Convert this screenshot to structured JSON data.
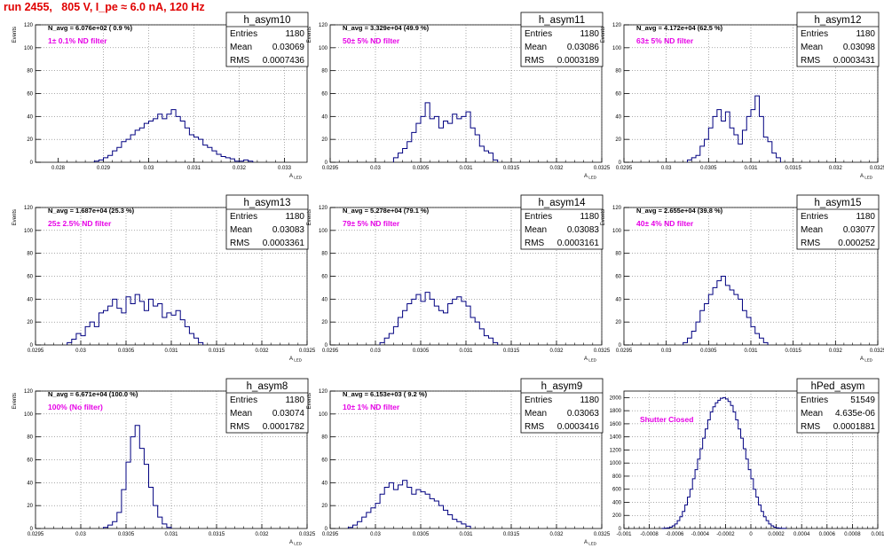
{
  "header": {
    "run_title": "run 2455,   805 V, I_pe ≈ 6.0 nA, 120 Hz"
  },
  "chart_data": [
    {
      "type": "histogram",
      "name": "h_asym10",
      "navg": "N_avg = 6.076e+02 ( 0.9 %)",
      "note": "1± 0.1% ND filter",
      "stats": {
        "Entries": "1180",
        "Mean": "0.03069",
        "RMS": "0.0007436"
      },
      "ylabel": "Events",
      "xlabel": "A_LED",
      "ylim": [
        0,
        120
      ],
      "yticks": [
        0,
        20,
        40,
        60,
        80,
        100,
        120
      ],
      "xlim": [
        0.0275,
        0.0335
      ],
      "xticks": [
        0.028,
        0.029,
        0.03,
        0.031,
        0.032,
        0.033
      ],
      "xtick_labels": [
        "0.028",
        "0.029",
        "0.03",
        "0.031",
        "0.032",
        "0.033"
      ],
      "bin_width": 0.0001,
      "bins_start": 0.0288,
      "counts": [
        1,
        2,
        4,
        6,
        10,
        13,
        18,
        20,
        24,
        28,
        30,
        34,
        36,
        38,
        42,
        38,
        42,
        46,
        40,
        36,
        30,
        24,
        22,
        20,
        15,
        13,
        10,
        7,
        5,
        4,
        3,
        1,
        1,
        2,
        1
      ]
    },
    {
      "type": "histogram",
      "name": "h_asym11",
      "navg": "N_avg = 3.329e+04 (49.9 %)",
      "note": "50± 5% ND filter",
      "stats": {
        "Entries": "1180",
        "Mean": "0.03086",
        "RMS": "0.0003189"
      },
      "ylabel": "Events",
      "xlabel": "A_LED",
      "ylim": [
        0,
        120
      ],
      "yticks": [
        0,
        20,
        40,
        60,
        80,
        100,
        120
      ],
      "xlim": [
        0.0295,
        0.0325
      ],
      "xticks": [
        0.0295,
        0.03,
        0.0305,
        0.031,
        0.0315,
        0.032,
        0.0325
      ],
      "xtick_labels": [
        "0.0295",
        "0.03",
        "0.0305",
        "0.031",
        "0.0315",
        "0.032",
        "0.0325"
      ],
      "bin_width": 5e-05,
      "bins_start": 0.0302,
      "counts": [
        4,
        8,
        12,
        18,
        26,
        34,
        40,
        52,
        38,
        40,
        30,
        36,
        34,
        42,
        38,
        40,
        44,
        30,
        24,
        14,
        10,
        8,
        2
      ]
    },
    {
      "type": "histogram",
      "name": "h_asym12",
      "navg": "N_avg = 4.172e+04 (62.5 %)",
      "note": "63± 5% ND filter",
      "stats": {
        "Entries": "1180",
        "Mean": "0.03098",
        "RMS": "0.0003431"
      },
      "ylabel": "Events",
      "xlabel": "A_LED",
      "ylim": [
        0,
        120
      ],
      "yticks": [
        0,
        20,
        40,
        60,
        80,
        100,
        120
      ],
      "xlim": [
        0.0295,
        0.0325
      ],
      "xticks": [
        0.0295,
        0.03,
        0.0305,
        0.031,
        0.0315,
        0.032,
        0.0325
      ],
      "xtick_labels": [
        "0.0295",
        "0.03",
        "0.0305",
        "0.031",
        "0.0315",
        "0.032",
        "0.0325"
      ],
      "bin_width": 5e-05,
      "bins_start": 0.03025,
      "counts": [
        2,
        4,
        6,
        14,
        20,
        30,
        40,
        46,
        36,
        44,
        30,
        24,
        16,
        28,
        40,
        46,
        58,
        40,
        22,
        18,
        8,
        4
      ]
    },
    {
      "type": "histogram",
      "name": "h_asym13",
      "navg": "N_avg = 1.687e+04 (25.3 %)",
      "note": "25± 2.5% ND filter",
      "stats": {
        "Entries": "1180",
        "Mean": "0.03083",
        "RMS": "0.0003361"
      },
      "ylabel": "Events",
      "xlabel": "A_LED",
      "ylim": [
        0,
        120
      ],
      "yticks": [
        0,
        20,
        40,
        60,
        80,
        100,
        120
      ],
      "xlim": [
        0.0295,
        0.0325
      ],
      "xticks": [
        0.0295,
        0.03,
        0.0305,
        0.031,
        0.0315,
        0.032,
        0.0325
      ],
      "xtick_labels": [
        "0.0295",
        "0.03",
        "0.0305",
        "0.031",
        "0.0315",
        "0.032",
        "0.0325"
      ],
      "bin_width": 5e-05,
      "bins_start": 0.02985,
      "counts": [
        2,
        5,
        10,
        8,
        16,
        20,
        16,
        28,
        30,
        34,
        40,
        32,
        28,
        42,
        36,
        44,
        38,
        30,
        40,
        34,
        36,
        24,
        28,
        26,
        30,
        22,
        16,
        10,
        6,
        2
      ]
    },
    {
      "type": "histogram",
      "name": "h_asym14",
      "navg": "N_avg = 5.278e+04 (79.1 %)",
      "note": "79± 5% ND filter",
      "stats": {
        "Entries": "1180",
        "Mean": "0.03083",
        "RMS": "0.0003161"
      },
      "ylabel": "Events",
      "xlabel": "A_LED",
      "ylim": [
        0,
        120
      ],
      "yticks": [
        0,
        20,
        40,
        60,
        80,
        100,
        120
      ],
      "xlim": [
        0.0295,
        0.0325
      ],
      "xticks": [
        0.0295,
        0.03,
        0.0305,
        0.031,
        0.0315,
        0.032,
        0.0325
      ],
      "xtick_labels": [
        "0.0295",
        "0.03",
        "0.0305",
        "0.031",
        "0.0315",
        "0.032",
        "0.0325"
      ],
      "bin_width": 5e-05,
      "bins_start": 0.03005,
      "counts": [
        2,
        6,
        10,
        16,
        24,
        30,
        36,
        40,
        44,
        38,
        46,
        40,
        34,
        30,
        28,
        36,
        40,
        42,
        38,
        34,
        24,
        20,
        14,
        8,
        6,
        2
      ]
    },
    {
      "type": "histogram",
      "name": "h_asym15",
      "navg": "N_avg = 2.655e+04 (39.8 %)",
      "note": "40± 4% ND filter",
      "stats": {
        "Entries": "1180",
        "Mean": "0.03077",
        "RMS": "0.000252"
      },
      "ylabel": "Events",
      "xlabel": "A_LED",
      "ylim": [
        0,
        120
      ],
      "yticks": [
        0,
        20,
        40,
        60,
        80,
        100,
        120
      ],
      "xlim": [
        0.0295,
        0.0325
      ],
      "xticks": [
        0.0295,
        0.03,
        0.0305,
        0.031,
        0.0315,
        0.032,
        0.0325
      ],
      "xtick_labels": [
        "0.0295",
        "0.03",
        "0.0305",
        "0.031",
        "0.0315",
        "0.032",
        "0.0325"
      ],
      "bin_width": 5e-05,
      "bins_start": 0.0302,
      "counts": [
        2,
        6,
        12,
        20,
        30,
        36,
        44,
        50,
        56,
        60,
        52,
        48,
        44,
        40,
        30,
        24,
        16,
        10,
        6,
        2
      ]
    },
    {
      "type": "histogram",
      "name": "h_asym8",
      "navg": "N_avg = 6.671e+04 (100.0 %)",
      "note": "100% (No filter)",
      "stats": {
        "Entries": "1180",
        "Mean": "0.03074",
        "RMS": "0.0001782"
      },
      "ylabel": "Events",
      "xlabel": "A_LED",
      "ylim": [
        0,
        120
      ],
      "yticks": [
        0,
        20,
        40,
        60,
        80,
        100,
        120
      ],
      "xlim": [
        0.0295,
        0.0325
      ],
      "xticks": [
        0.0295,
        0.03,
        0.0305,
        0.031,
        0.0315,
        0.032,
        0.0325
      ],
      "xtick_labels": [
        "0.0295",
        "0.03",
        "0.0305",
        "0.031",
        "0.0315",
        "0.032",
        "0.0325"
      ],
      "bin_width": 5e-05,
      "bins_start": 0.03025,
      "counts": [
        1,
        3,
        6,
        14,
        34,
        58,
        80,
        90,
        70,
        56,
        36,
        20,
        10,
        4,
        1
      ]
    },
    {
      "type": "histogram",
      "name": "h_asym9",
      "navg": "N_avg = 6.153e+03 ( 9.2 %)",
      "note": "10± 1% ND filter",
      "stats": {
        "Entries": "1180",
        "Mean": "0.03063",
        "RMS": "0.0003416"
      },
      "ylabel": "Events",
      "xlabel": "A_LED",
      "ylim": [
        0,
        120
      ],
      "yticks": [
        0,
        20,
        40,
        60,
        80,
        100,
        120
      ],
      "xlim": [
        0.0295,
        0.0325
      ],
      "xticks": [
        0.0295,
        0.03,
        0.0305,
        0.031,
        0.0315,
        0.032,
        0.0325
      ],
      "xtick_labels": [
        "0.0295",
        "0.03",
        "0.0305",
        "0.031",
        "0.0315",
        "0.032",
        "0.0325"
      ],
      "bin_width": 5e-05,
      "bins_start": 0.0297,
      "counts": [
        1,
        3,
        6,
        10,
        14,
        18,
        22,
        30,
        36,
        40,
        34,
        38,
        42,
        36,
        30,
        34,
        32,
        30,
        26,
        24,
        20,
        16,
        12,
        8,
        6,
        4,
        2
      ]
    },
    {
      "type": "histogram",
      "name": "hPed_asym",
      "navg": "",
      "note": "Shutter Closed",
      "stats": {
        "Entries": "51549",
        "Mean": "4.635e-06",
        "RMS": "0.0001881"
      },
      "ylabel": "",
      "xlabel": "",
      "ylim": [
        0,
        2100
      ],
      "yticks": [
        0,
        200,
        400,
        600,
        800,
        1000,
        1200,
        1400,
        1600,
        1800,
        2000
      ],
      "xlim": [
        -0.001,
        0.001
      ],
      "xticks": [
        -0.001,
        -0.0008,
        -0.0006,
        -0.0004,
        -0.0002,
        0,
        0.0002,
        0.0004,
        0.0006,
        0.0008,
        0.001
      ],
      "xtick_labels": [
        "-0.001",
        "-0.0008",
        "-0.0006",
        "-0.0004",
        "-0.0002",
        "0",
        "0.0002",
        "0.0004",
        "0.0006",
        "0.0008",
        "0.001"
      ],
      "bin_width": 2e-05,
      "bins_start": -0.0007,
      "counts": [
        2,
        5,
        10,
        20,
        40,
        70,
        120,
        180,
        260,
        360,
        480,
        600,
        760,
        900,
        1060,
        1220,
        1380,
        1520,
        1660,
        1780,
        1860,
        1920,
        1960,
        1990,
        2000,
        1980,
        1940,
        1880,
        1780,
        1660,
        1520,
        1380,
        1220,
        1060,
        900,
        760,
        600,
        480,
        360,
        260,
        180,
        120,
        70,
        40,
        20,
        10,
        5,
        2,
        1
      ]
    }
  ]
}
